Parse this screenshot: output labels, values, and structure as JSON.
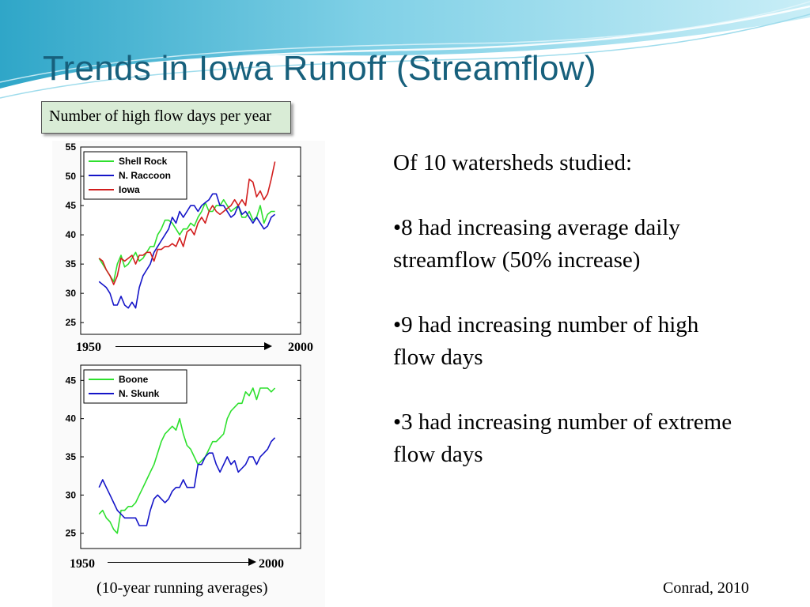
{
  "title": "Trends in Iowa Runoff (Streamflow)",
  "subtitle": "Number of high flow days per year",
  "theme_colors": {
    "title": "#17607c",
    "subtitle_box": "#d9ecd6",
    "wave": "#7fd0e6"
  },
  "axis_labels": {
    "top_start": "1950",
    "top_end": "2000",
    "bottom_start": "1950",
    "bottom_end": "2000"
  },
  "caption": "(10-year running averages)",
  "citation": "Conrad, 2010",
  "bullets": {
    "intro": "Of 10 watersheds studied:",
    "b1": "•8 had increasing average daily streamflow (50% increase)",
    "b2": "•9 had increasing number of high flow days",
    "b3": "•3 had increasing number of extreme flow days"
  },
  "chart_data": [
    {
      "type": "line",
      "ylim": [
        23,
        55
      ],
      "yticks": [
        25,
        30,
        35,
        40,
        45,
        50,
        55
      ],
      "grid": false,
      "legend": "top-left",
      "x": [
        1955,
        1956,
        1957,
        1958,
        1959,
        1960,
        1961,
        1962,
        1963,
        1964,
        1965,
        1966,
        1967,
        1968,
        1969,
        1970,
        1971,
        1972,
        1973,
        1974,
        1975,
        1976,
        1977,
        1978,
        1979,
        1980,
        1981,
        1982,
        1983,
        1984,
        1985,
        1986,
        1987,
        1988,
        1989,
        1990,
        1991,
        1992,
        1993,
        1994,
        1995,
        1996,
        1997,
        1998,
        1999,
        2000,
        2001,
        2002,
        2003
      ],
      "series": [
        {
          "name": "Shell Rock",
          "color": "#2ee02e",
          "values": [
            36,
            35,
            34,
            33,
            32,
            35,
            36.5,
            34.5,
            35,
            36,
            37,
            35.5,
            36,
            37,
            38,
            38,
            40,
            41,
            42.5,
            42.5,
            42,
            41,
            40,
            41,
            41,
            42,
            41.5,
            43,
            44,
            45.5,
            44,
            44,
            45,
            45,
            46,
            45,
            44,
            44.5,
            45,
            43,
            43,
            44,
            42.5,
            43,
            45,
            42,
            43.5,
            44,
            44
          ]
        },
        {
          "name": "N. Raccoon",
          "color": "#1515c8",
          "values": [
            32,
            31.5,
            31,
            30,
            28,
            28,
            29.5,
            28,
            27.5,
            28.5,
            27.5,
            31,
            33,
            34,
            35,
            37,
            38,
            39,
            40,
            41,
            43,
            42,
            44,
            43,
            44,
            45,
            45,
            44,
            45,
            45.5,
            46,
            47,
            47,
            45,
            45,
            44,
            43,
            43.5,
            45,
            43.5,
            44,
            43,
            42,
            43,
            42,
            41,
            41.5,
            43,
            43.5
          ]
        },
        {
          "name": "Iowa",
          "color": "#d21e1e",
          "values": [
            36,
            35.5,
            34,
            33,
            31.5,
            33,
            36,
            35.5,
            36,
            36.5,
            35,
            36.5,
            36.5,
            37,
            37,
            35.5,
            37.5,
            37.5,
            38,
            38,
            38.5,
            38,
            39.5,
            38,
            40.5,
            41,
            40,
            42,
            43,
            42,
            44,
            45,
            44,
            43.5,
            44,
            44.5,
            45,
            46,
            45,
            46,
            45,
            49.5,
            49,
            46.5,
            47.5,
            46,
            47,
            49.5,
            52.5
          ]
        }
      ]
    },
    {
      "type": "line",
      "ylim": [
        23,
        47
      ],
      "yticks": [
        25,
        30,
        35,
        40,
        45
      ],
      "grid": false,
      "legend": "top-left",
      "x": [
        1955,
        1956,
        1957,
        1958,
        1959,
        1960,
        1961,
        1962,
        1963,
        1964,
        1965,
        1966,
        1967,
        1968,
        1969,
        1970,
        1971,
        1972,
        1973,
        1974,
        1975,
        1976,
        1977,
        1978,
        1979,
        1980,
        1981,
        1982,
        1983,
        1984,
        1985,
        1986,
        1987,
        1988,
        1989,
        1990,
        1991,
        1992,
        1993,
        1994,
        1995,
        1996,
        1997,
        1998,
        1999,
        2000,
        2001,
        2002,
        2003
      ],
      "series": [
        {
          "name": "Boone",
          "color": "#2ee02e",
          "values": [
            27.5,
            28,
            27,
            26.5,
            25.5,
            25,
            28,
            28,
            28.5,
            28.5,
            29,
            30,
            31,
            32,
            33,
            34,
            35.5,
            37,
            38,
            38.5,
            39,
            38.5,
            40,
            38,
            36.5,
            36,
            35,
            34,
            34.5,
            35,
            36,
            37,
            37,
            37.5,
            38,
            40,
            41,
            41.5,
            42,
            42,
            43.5,
            43,
            44,
            42.5,
            44,
            44,
            44,
            43.5,
            44
          ]
        },
        {
          "name": "N. Skunk",
          "color": "#1515c8",
          "values": [
            31,
            32,
            31,
            30,
            29,
            28,
            27.5,
            27,
            27,
            27,
            27,
            26,
            26,
            26,
            28,
            29.5,
            30,
            29.5,
            29,
            29.5,
            30.5,
            31,
            31,
            32,
            31,
            31,
            31,
            34,
            34,
            35,
            35.5,
            35.5,
            34,
            33,
            34,
            35,
            34,
            34.5,
            33,
            33.5,
            34,
            35,
            35,
            34,
            35,
            35.5,
            36,
            37,
            37.5
          ]
        }
      ]
    }
  ]
}
